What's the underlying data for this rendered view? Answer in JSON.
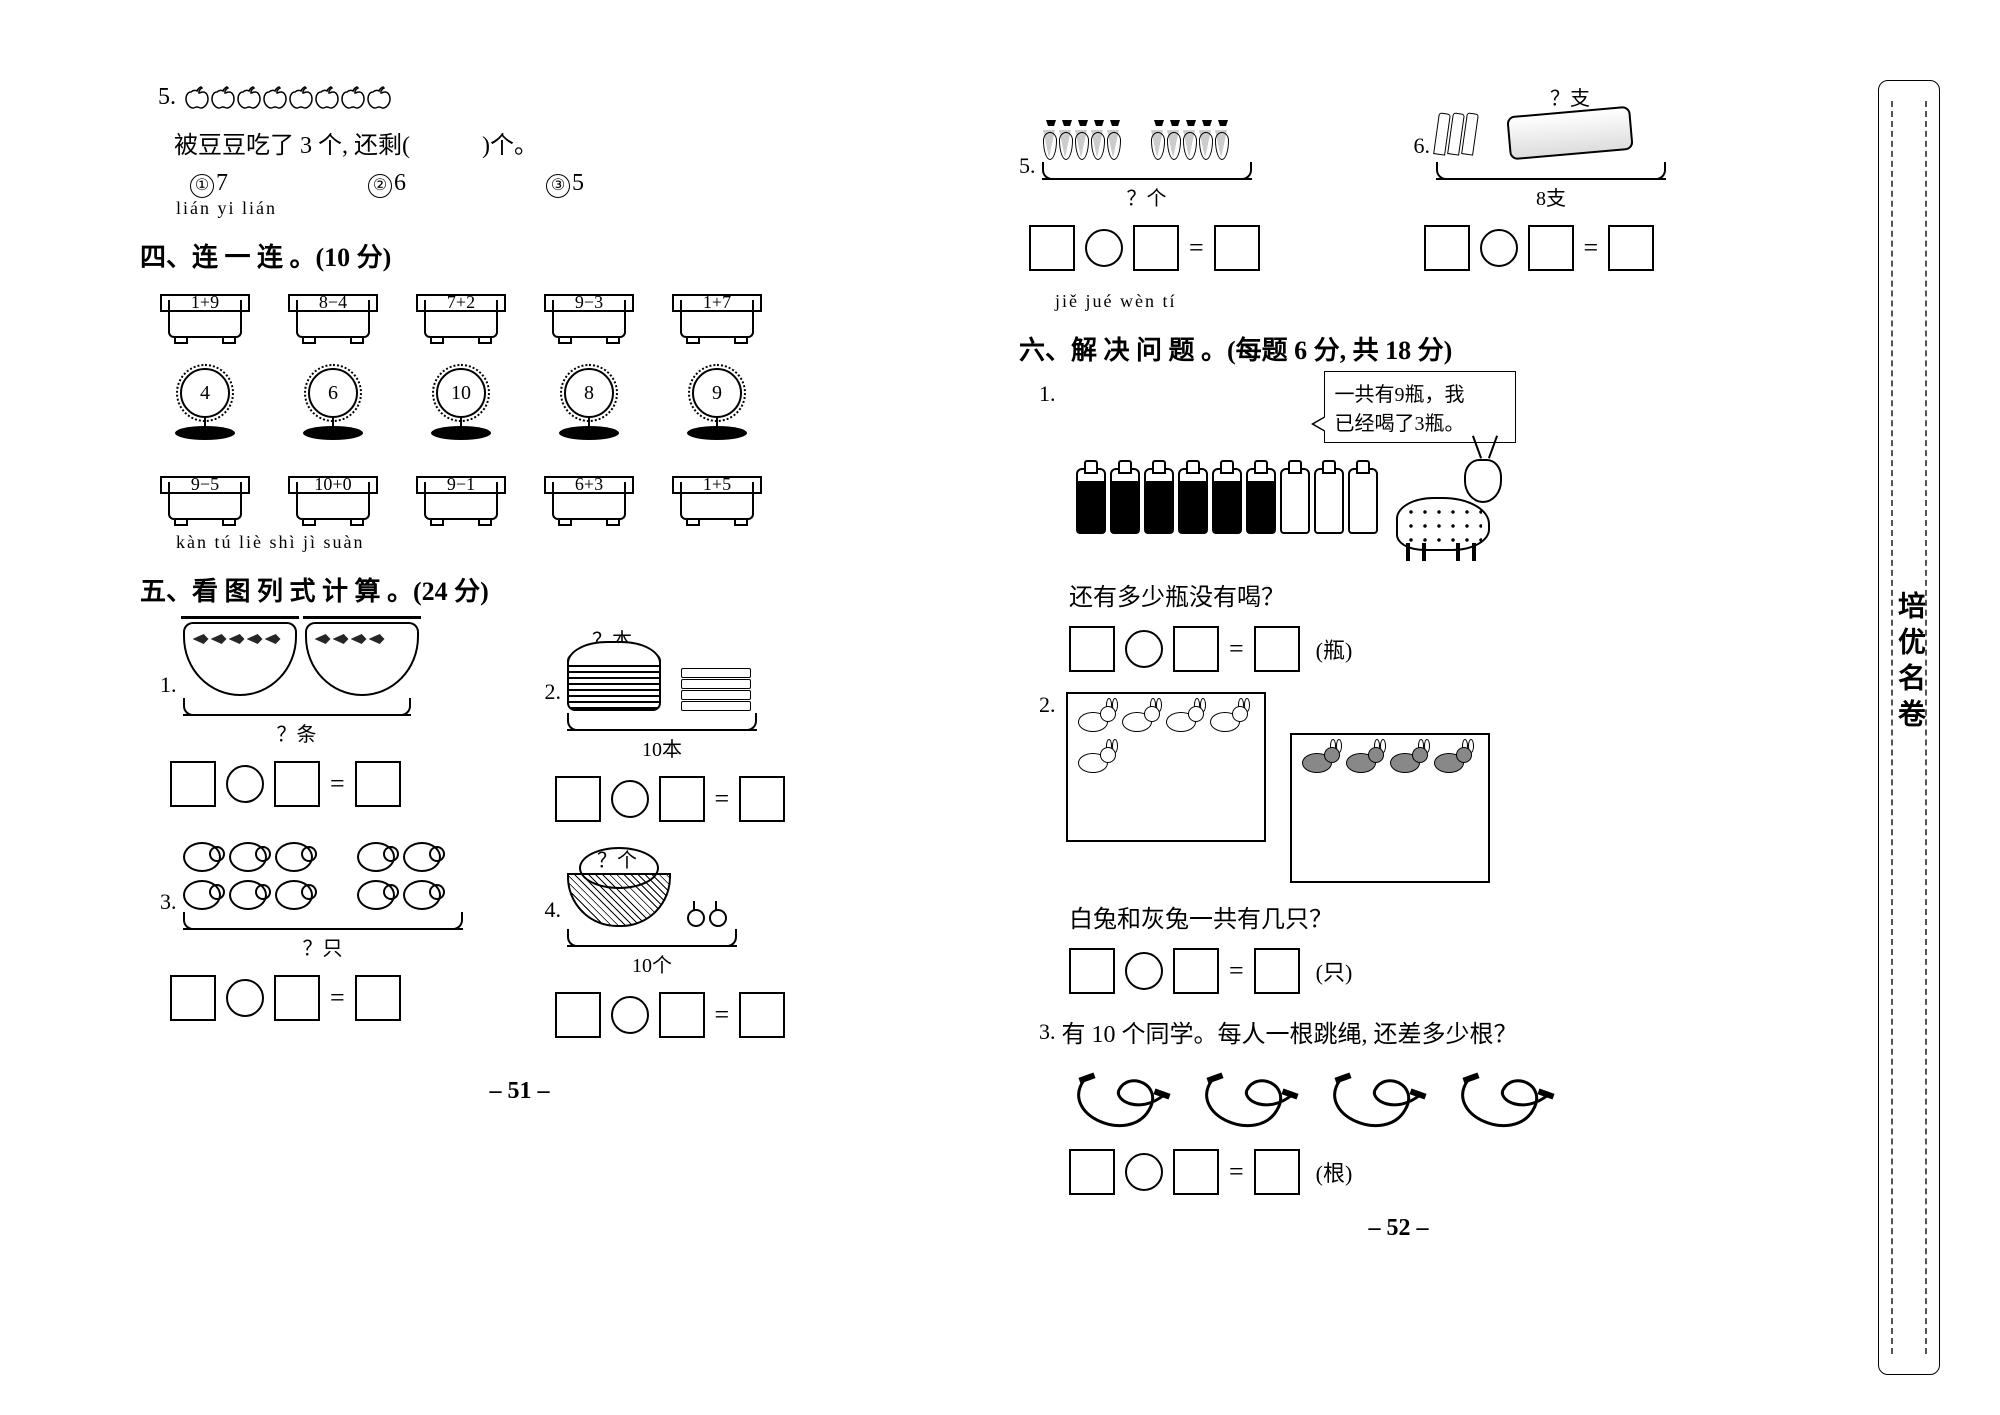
{
  "left": {
    "q5": {
      "num": "5.",
      "apple_count": 8,
      "text": "被豆豆吃了 3 个, 还剩(　　　)个。",
      "choices": [
        {
          "mark": "①",
          "val": "7"
        },
        {
          "mark": "②",
          "val": "6"
        },
        {
          "mark": "③",
          "val": "5"
        }
      ]
    },
    "sec4": {
      "pinyin": "lián  yi  lián",
      "title": "四、连 一 连 。(10 分)",
      "pots_top": [
        "1+9",
        "8−4",
        "7+2",
        "9−3",
        "1+7"
      ],
      "flowers": [
        "4",
        "6",
        "10",
        "8",
        "9"
      ],
      "pots_bottom": [
        "9−5",
        "10+0",
        "9−1",
        "6+3",
        "1+5"
      ]
    },
    "sec5": {
      "pinyin": "kàn  tú  liè  shì  jì  suàn",
      "title": "五、看 图 列 式 计 算 。(24 分)",
      "sub1": {
        "num": "1.",
        "brace_label": "？条"
      },
      "sub2": {
        "num": "2.",
        "top_label": "？本",
        "brace_label": "10本"
      },
      "sub3": {
        "num": "3.",
        "brace_label": "？只"
      },
      "sub4": {
        "num": "4.",
        "top_label": "？个",
        "brace_label": "10个"
      }
    },
    "page_num": "– 51 –"
  },
  "right": {
    "top5": {
      "num": "5.",
      "brace_label": "？个"
    },
    "top6": {
      "num": "6.",
      "top_label": "？支",
      "brace_label": "8支"
    },
    "sec6": {
      "pinyin": "jiě  jué  wèn  tí",
      "title": "六、解 决 问 题 。(每题 6 分, 共 18 分)"
    },
    "p1": {
      "num": "1.",
      "speech1": "一共有9瓶，我",
      "speech2": "已经喝了3瓶。",
      "bottles_full": 6,
      "bottles_empty": 3,
      "question": "还有多少瓶没有喝？",
      "unit": "(瓶)"
    },
    "p2": {
      "num": "2.",
      "white_rabbits": 5,
      "gray_rabbits": 4,
      "question": "白兔和灰兔一共有几只？",
      "unit": "(只)"
    },
    "p3": {
      "num": "3.",
      "text": "有 10 个同学。每人一根跳绳, 还差多少根？",
      "rope_count": 4,
      "unit": "(根)"
    },
    "page_num": "– 52 –",
    "margin_title": "培优名卷"
  }
}
